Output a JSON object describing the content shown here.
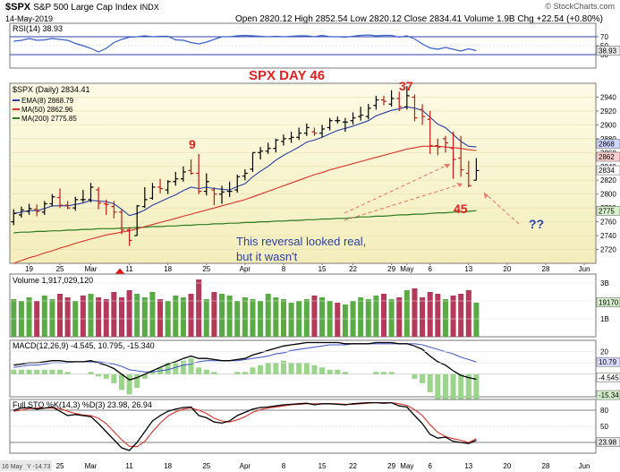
{
  "header": {
    "symbol": "$SPX",
    "name": "S&P 500 Large Cap Index",
    "exchange": "INDX",
    "date": "14-May-2019",
    "open_label": "Open",
    "open": "2820.12",
    "high_label": "High",
    "high": "2852.54",
    "low_label": "Low",
    "low": "2820.12",
    "close_label": "Close",
    "close": "2834.41",
    "volume": "Volume 1.9B",
    "change": "Chg +22.54 (+0.80%)",
    "watermark": "© StockCharts.com"
  },
  "colors": {
    "price_bg_top": "#fdfbe6",
    "price_bg_bottom": "#f4eebc",
    "ema": "#2b3fa8",
    "ma50": "#d9322a",
    "ma200": "#2a7a1f",
    "vol_up": "#5aab46",
    "vol_down": "#b33a5a",
    "annotation_red": "#e02222",
    "annotation_blue": "#2a3fa8"
  },
  "x_axis": {
    "labels": [
      {
        "i": 2,
        "t": "19"
      },
      {
        "i": 6,
        "t": "25"
      },
      {
        "i": 10,
        "t": "Mar"
      },
      {
        "i": 15,
        "t": "11"
      },
      {
        "i": 20,
        "t": "18"
      },
      {
        "i": 25,
        "t": "25"
      },
      {
        "i": 30,
        "t": "Apr"
      },
      {
        "i": 35,
        "t": "8"
      },
      {
        "i": 40,
        "t": "15"
      },
      {
        "i": 44,
        "t": "22"
      },
      {
        "i": 49,
        "t": "29"
      },
      {
        "i": 51,
        "t": "May"
      },
      {
        "i": 54,
        "t": "6"
      },
      {
        "i": 59,
        "t": "13"
      },
      {
        "i": 64,
        "t": "20"
      },
      {
        "i": 69,
        "t": "28"
      },
      {
        "i": 74,
        "t": "Jun"
      }
    ]
  },
  "chart_data": [
    {
      "type": "line",
      "title": "RSI(14) 38.93",
      "series": [
        {
          "name": "RSI(14)",
          "values": [
            60,
            62,
            66,
            62,
            63,
            66,
            64,
            62,
            55,
            50,
            44,
            36,
            44,
            57,
            64,
            69,
            70,
            72,
            70,
            71,
            71,
            63,
            62,
            57,
            54,
            58,
            64,
            70,
            70,
            72,
            73,
            72,
            71,
            70,
            71,
            70,
            71,
            72,
            72,
            70,
            73,
            70,
            70,
            69,
            71,
            73,
            74,
            72,
            73,
            73,
            69,
            72,
            65,
            54,
            45,
            42,
            46,
            42,
            38,
            43,
            39
          ]
        }
      ],
      "ylim": [
        0,
        100
      ],
      "yticks": [
        70,
        50,
        30
      ],
      "last_label": "38.93"
    },
    {
      "type": "candlestick",
      "title": "$SPX (Daily) 2834.41",
      "ylim": [
        2700,
        2960
      ],
      "yticks": [
        2720,
        2740,
        2760,
        2780,
        2800,
        2820,
        2840,
        2860,
        2880,
        2900,
        2920,
        2940
      ],
      "axis_labels": [
        "2868",
        "2862",
        "2834",
        "2775"
      ],
      "series": [
        {
          "name": "EMA(8) 2868.79"
        },
        {
          "name": "MA(50) 2862.96"
        },
        {
          "name": "MA(200) 2775.85"
        }
      ],
      "ohlc": [
        [
          2760,
          2778,
          2755,
          2772
        ],
        [
          2770,
          2782,
          2766,
          2777
        ],
        [
          2775,
          2786,
          2770,
          2779
        ],
        [
          2778,
          2785,
          2768,
          2775
        ],
        [
          2774,
          2790,
          2770,
          2786
        ],
        [
          2786,
          2800,
          2782,
          2796
        ],
        [
          2795,
          2808,
          2780,
          2784
        ],
        [
          2784,
          2790,
          2778,
          2780
        ],
        [
          2780,
          2796,
          2776,
          2792
        ],
        [
          2792,
          2806,
          2788,
          2792
        ],
        [
          2792,
          2816,
          2788,
          2810
        ],
        [
          2806,
          2810,
          2778,
          2787
        ],
        [
          2786,
          2792,
          2770,
          2785
        ],
        [
          2782,
          2790,
          2765,
          2774
        ],
        [
          2774,
          2778,
          2742,
          2748
        ],
        [
          2748,
          2752,
          2725,
          2733
        ],
        [
          2740,
          2784,
          2740,
          2783
        ],
        [
          2782,
          2810,
          2780,
          2792
        ],
        [
          2794,
          2816,
          2792,
          2810
        ],
        [
          2810,
          2822,
          2801,
          2808
        ],
        [
          2806,
          2820,
          2800,
          2818
        ],
        [
          2818,
          2832,
          2812,
          2822
        ],
        [
          2822,
          2840,
          2818,
          2832
        ],
        [
          2834,
          2850,
          2828,
          2830
        ],
        [
          2830,
          2858,
          2800,
          2804
        ],
        [
          2804,
          2830,
          2798,
          2818
        ],
        [
          2806,
          2810,
          2784,
          2800
        ],
        [
          2800,
          2812,
          2786,
          2803
        ],
        [
          2804,
          2818,
          2796,
          2804
        ],
        [
          2806,
          2828,
          2802,
          2825
        ],
        [
          2826,
          2836,
          2820,
          2830
        ],
        [
          2836,
          2860,
          2832,
          2860
        ],
        [
          2860,
          2868,
          2850,
          2862
        ],
        [
          2862,
          2874,
          2858,
          2866
        ],
        [
          2866,
          2880,
          2860,
          2878
        ],
        [
          2876,
          2886,
          2870,
          2880
        ],
        [
          2880,
          2890,
          2874,
          2882
        ],
        [
          2882,
          2896,
          2878,
          2888
        ],
        [
          2888,
          2902,
          2884,
          2896
        ],
        [
          2890,
          2896,
          2884,
          2888
        ],
        [
          2888,
          2900,
          2882,
          2894
        ],
        [
          2896,
          2910,
          2892,
          2906
        ],
        [
          2906,
          2912,
          2902,
          2906
        ],
        [
          2904,
          2910,
          2890,
          2904
        ],
        [
          2906,
          2918,
          2900,
          2910
        ],
        [
          2912,
          2926,
          2906,
          2914
        ],
        [
          2912,
          2930,
          2908,
          2924
        ],
        [
          2928,
          2942,
          2922,
          2936
        ],
        [
          2936,
          2942,
          2928,
          2934
        ],
        [
          2930,
          2950,
          2926,
          2938
        ],
        [
          2938,
          2948,
          2920,
          2926
        ],
        [
          2926,
          2956,
          2922,
          2942
        ],
        [
          2940,
          2944,
          2905,
          2910
        ],
        [
          2922,
          2930,
          2900,
          2912
        ],
        [
          2908,
          2920,
          2858,
          2870
        ],
        [
          2870,
          2880,
          2856,
          2868
        ],
        [
          2880,
          2884,
          2860,
          2874
        ],
        [
          2866,
          2890,
          2822,
          2850
        ],
        [
          2852,
          2884,
          2825,
          2835
        ],
        [
          2830,
          2848,
          2810,
          2812
        ],
        [
          2820,
          2852,
          2820,
          2834
        ]
      ],
      "ema8": [
        2772,
        2774,
        2776,
        2776,
        2779,
        2783,
        2783,
        2783,
        2785,
        2787,
        2791,
        2790,
        2789,
        2786,
        2778,
        2769,
        2772,
        2777,
        2784,
        2789,
        2794,
        2799,
        2805,
        2810,
        2808,
        2810,
        2808,
        2807,
        2806,
        2811,
        2815,
        2825,
        2833,
        2840,
        2849,
        2856,
        2862,
        2868,
        2875,
        2878,
        2882,
        2887,
        2892,
        2895,
        2898,
        2902,
        2906,
        2913,
        2917,
        2921,
        2923,
        2926,
        2924,
        2921,
        2911,
        2901,
        2896,
        2886,
        2876,
        2869,
        2868
      ],
      "ma50": [
        2700,
        2704,
        2708,
        2711,
        2715,
        2718,
        2722,
        2725,
        2729,
        2732,
        2735,
        2738,
        2741,
        2743,
        2745,
        2747,
        2750,
        2753,
        2756,
        2759,
        2762,
        2765,
        2768,
        2771,
        2774,
        2777,
        2780,
        2783,
        2786,
        2789,
        2792,
        2796,
        2800,
        2804,
        2808,
        2812,
        2816,
        2820,
        2824,
        2828,
        2831,
        2835,
        2838,
        2841,
        2844,
        2847,
        2850,
        2853,
        2856,
        2859,
        2862,
        2865,
        2867,
        2869,
        2869,
        2869,
        2868,
        2867,
        2866,
        2864,
        2863
      ],
      "ma200": [
        2744,
        2745,
        2745,
        2746,
        2746,
        2747,
        2747,
        2748,
        2748,
        2749,
        2749,
        2750,
        2750,
        2750,
        2751,
        2751,
        2752,
        2752,
        2753,
        2753,
        2754,
        2754,
        2755,
        2755,
        2756,
        2756,
        2757,
        2757,
        2758,
        2758,
        2759,
        2759,
        2760,
        2760,
        2761,
        2761,
        2762,
        2762,
        2763,
        2763,
        2764,
        2764,
        2765,
        2765,
        2766,
        2767,
        2767,
        2768,
        2768,
        2769,
        2770,
        2770,
        2771,
        2771,
        2772,
        2773,
        2773,
        2774,
        2774,
        2775,
        2776
      ]
    },
    {
      "type": "bar",
      "title": "Volume 1,917,029,120",
      "yticks": [
        "3B",
        "2B",
        "1B"
      ],
      "last_label": "19170",
      "values": [
        2.1,
        2.0,
        2.2,
        2.0,
        2.3,
        2.1,
        2.4,
        2.2,
        2.0,
        2.3,
        2.4,
        2.2,
        2.1,
        2.5,
        2.2,
        2.6,
        2.4,
        2.2,
        2.5,
        2.1,
        2.0,
        2.3,
        2.2,
        2.4,
        3.2,
        2.1,
        2.5,
        2.4,
        2.3,
        2.0,
        2.2,
        2.1,
        2.0,
        2.4,
        2.2,
        2.1,
        1.9,
        2.0,
        2.1,
        2.3,
        2.2,
        2.0,
        1.9,
        1.8,
        2.0,
        2.2,
        2.1,
        2.3,
        2.4,
        2.1,
        2.2,
        2.6,
        2.7,
        2.2,
        2.5,
        2.4,
        2.1,
        2.3,
        2.4,
        2.6,
        1.9
      ],
      "up": [
        true,
        true,
        true,
        false,
        true,
        true,
        false,
        false,
        true,
        false,
        true,
        false,
        false,
        false,
        false,
        false,
        true,
        true,
        true,
        false,
        true,
        true,
        true,
        false,
        false,
        true,
        false,
        true,
        true,
        true,
        true,
        true,
        true,
        true,
        true,
        true,
        true,
        true,
        true,
        false,
        true,
        true,
        false,
        true,
        true,
        true,
        true,
        true,
        false,
        true,
        false,
        true,
        false,
        false,
        false,
        false,
        true,
        false,
        false,
        false,
        true
      ]
    },
    {
      "type": "line",
      "title": "MACD(12,26,9) -4.545, 10.795, -15.340",
      "series": [
        {
          "name": "MACD",
          "values": [
            8,
            9,
            10,
            10,
            11,
            12,
            12,
            11,
            11,
            11,
            12,
            10,
            8,
            5,
            0,
            -5,
            -3,
            0,
            3,
            6,
            9,
            11,
            14,
            16,
            14,
            14,
            13,
            12,
            12,
            13,
            14,
            17,
            19,
            21,
            23,
            25,
            26,
            27,
            28,
            28,
            28,
            28,
            28,
            27,
            27,
            27,
            27,
            28,
            28,
            28,
            27,
            27,
            25,
            22,
            16,
            11,
            8,
            3,
            -1,
            -3,
            -4.5
          ]
        },
        {
          "name": "Signal",
          "values": [
            6,
            7,
            8,
            8,
            9,
            10,
            10,
            10,
            11,
            11,
            11,
            11,
            10,
            9,
            7,
            4,
            3,
            2,
            2,
            3,
            4,
            6,
            8,
            9,
            11,
            12,
            12,
            12,
            12,
            12,
            13,
            14,
            15,
            16,
            18,
            19,
            21,
            22,
            23,
            24,
            25,
            26,
            26,
            26,
            27,
            27,
            27,
            27,
            27,
            27,
            27,
            27,
            27,
            26,
            24,
            22,
            20,
            18,
            15,
            13,
            10.8
          ]
        }
      ],
      "ylim": [
        -20,
        30
      ],
      "yticks": [
        20,
        10
      ],
      "axis_labels": [
        "10.79",
        "-4.545",
        "-15.34"
      ]
    },
    {
      "type": "line",
      "title": "Full STO %K(14,3) %D(3) 23.98, 26.94",
      "series": [
        {
          "name": "%K",
          "values": [
            80,
            84,
            85,
            82,
            84,
            86,
            78,
            70,
            72,
            70,
            68,
            55,
            40,
            25,
            10,
            5,
            20,
            40,
            60,
            70,
            78,
            82,
            85,
            86,
            70,
            66,
            58,
            56,
            60,
            70,
            76,
            82,
            85,
            86,
            88,
            90,
            91,
            92,
            93,
            90,
            92,
            92,
            91,
            90,
            92,
            93,
            94,
            94,
            93,
            94,
            88,
            86,
            70,
            55,
            35,
            28,
            30,
            22,
            20,
            18,
            24
          ]
        },
        {
          "name": "%D",
          "values": [
            78,
            80,
            83,
            84,
            84,
            84,
            83,
            78,
            74,
            71,
            70,
            65,
            55,
            40,
            25,
            13,
            12,
            22,
            40,
            56,
            69,
            77,
            82,
            84,
            80,
            74,
            65,
            60,
            58,
            62,
            68,
            76,
            81,
            84,
            86,
            88,
            90,
            91,
            92,
            92,
            92,
            92,
            92,
            91,
            91,
            92,
            93,
            94,
            94,
            94,
            92,
            89,
            81,
            70,
            53,
            39,
            31,
            27,
            24,
            20,
            27
          ]
        }
      ],
      "ylim": [
        0,
        100
      ],
      "yticks": [
        80,
        50,
        20
      ],
      "last_label": "23.98"
    }
  ],
  "annotations": {
    "title": "SPX DAY 46",
    "n9": "9",
    "n37": "37",
    "n45": "45",
    "qq": "??",
    "reversal_line1": "This reversal looked real,",
    "reversal_line2": "but it wasn't"
  },
  "footer": {
    "left": "16 May",
    "ma": "Y -14.73"
  }
}
